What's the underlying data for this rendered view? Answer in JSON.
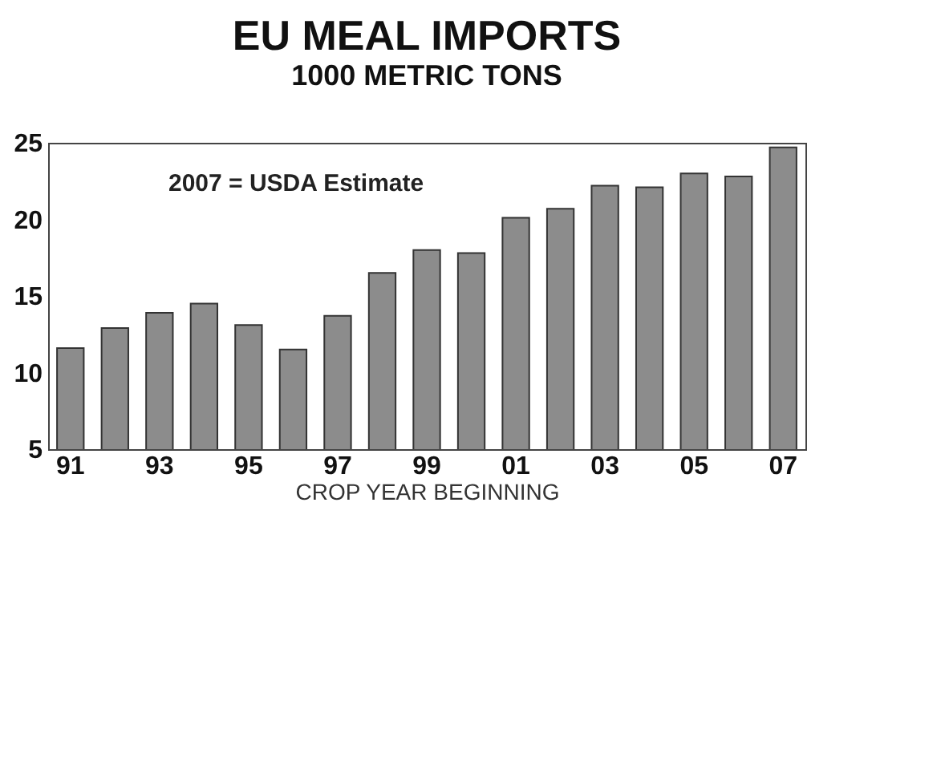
{
  "chart_data": {
    "type": "bar",
    "title": "EU MEAL IMPORTS",
    "subtitle": "1000 METRIC TONS",
    "xlabel": "CROP YEAR BEGINNING",
    "categories": [
      "91",
      null,
      "93",
      null,
      "95",
      null,
      "97",
      null,
      "99",
      null,
      "01",
      null,
      "03",
      null,
      "05",
      null,
      "07"
    ],
    "values": [
      11.6,
      12.9,
      13.9,
      14.5,
      13.1,
      11.5,
      13.7,
      16.5,
      18.0,
      17.8,
      20.1,
      20.7,
      22.2,
      22.1,
      23.0,
      22.8,
      24.7
    ],
    "color": "#8c8c8c",
    "ylim": [
      5,
      25
    ],
    "yticks": [
      5,
      10,
      15,
      20,
      25
    ],
    "grid": false,
    "annotations": [
      "2007 = USDA Estimate"
    ]
  }
}
